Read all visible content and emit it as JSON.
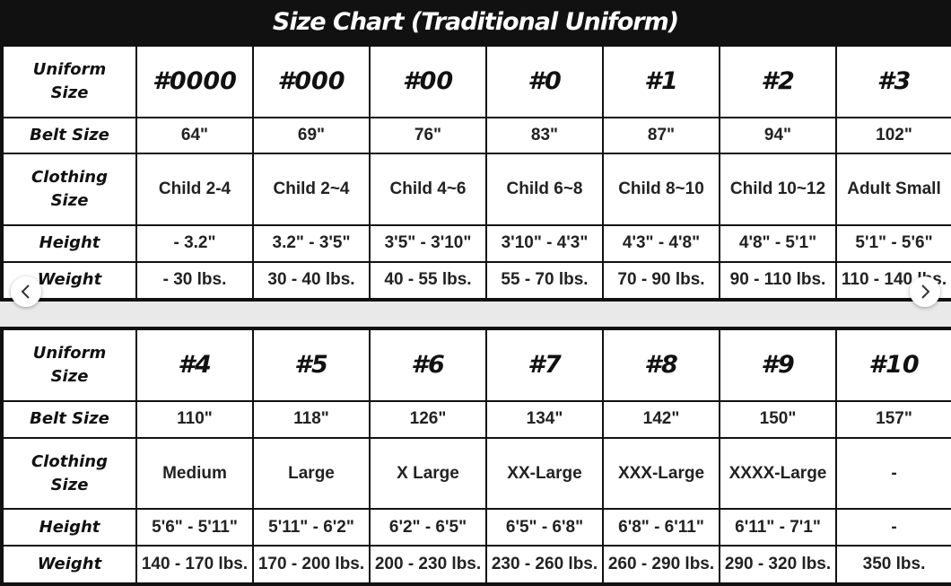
{
  "title": "Size Chart (Traditional Uniform)",
  "tables": [
    {
      "rows": [
        [
          "Uniform Size",
          "#0000",
          "#000",
          "#00",
          "#0",
          "#1",
          "#2",
          "#3"
        ],
        [
          "Belt Size",
          "64\"",
          "69\"",
          "76\"",
          "83\"",
          "87\"",
          "94\"",
          "102\""
        ],
        [
          "Clothing Size",
          "Child 2-4",
          "Child 2~4",
          "Child 4~6",
          "Child 6~8",
          "Child 8~10",
          "Child 10~12",
          "Adult Small"
        ],
        [
          "Height",
          "- 3.2\"",
          "3.2\" - 3'5\"",
          "3'5\" - 3'10\"",
          "3'10\" -  4'3\"",
          "4'3\" - 4'8\"",
          "4'8\" - 5'1\"",
          "5'1\" - 5'6\""
        ],
        [
          "Weight",
          "- 30 lbs.",
          "30 - 40 lbs.",
          "40 - 55 lbs.",
          "55 - 70 lbs.",
          "70 - 90 lbs.",
          "90 - 110 lbs.",
          "110 - 140 lbs."
        ]
      ]
    },
    {
      "rows": [
        [
          "Uniform Size",
          "#4",
          "#5",
          "#6",
          "#7",
          "#8",
          "#9",
          "#10"
        ],
        [
          "Belt Size",
          "110\"",
          "118\"",
          "126\"",
          "134\"",
          "142\"",
          "150\"",
          "157\""
        ],
        [
          "Clothing Size",
          "Medium",
          "Large",
          "X Large",
          "XX-Large",
          "XXX-Large",
          "XXXX-Large",
          "-"
        ],
        [
          "Height",
          "5'6\" - 5'11\"",
          "5'11\" - 6'2\"",
          "6'2\" - 6'5\"",
          "6'5\" - 6'8\"",
          "6'8\" - 6'11\"",
          "6'11\" - 7'1\"",
          "-"
        ],
        [
          "Weight",
          "140 - 170 lbs.",
          "170 - 200 lbs.",
          "200 - 230 lbs.",
          "230 - 260 lbs.",
          "260 - 290 lbs.",
          "290 - 320 lbs.",
          "350 lbs."
        ]
      ]
    }
  ]
}
